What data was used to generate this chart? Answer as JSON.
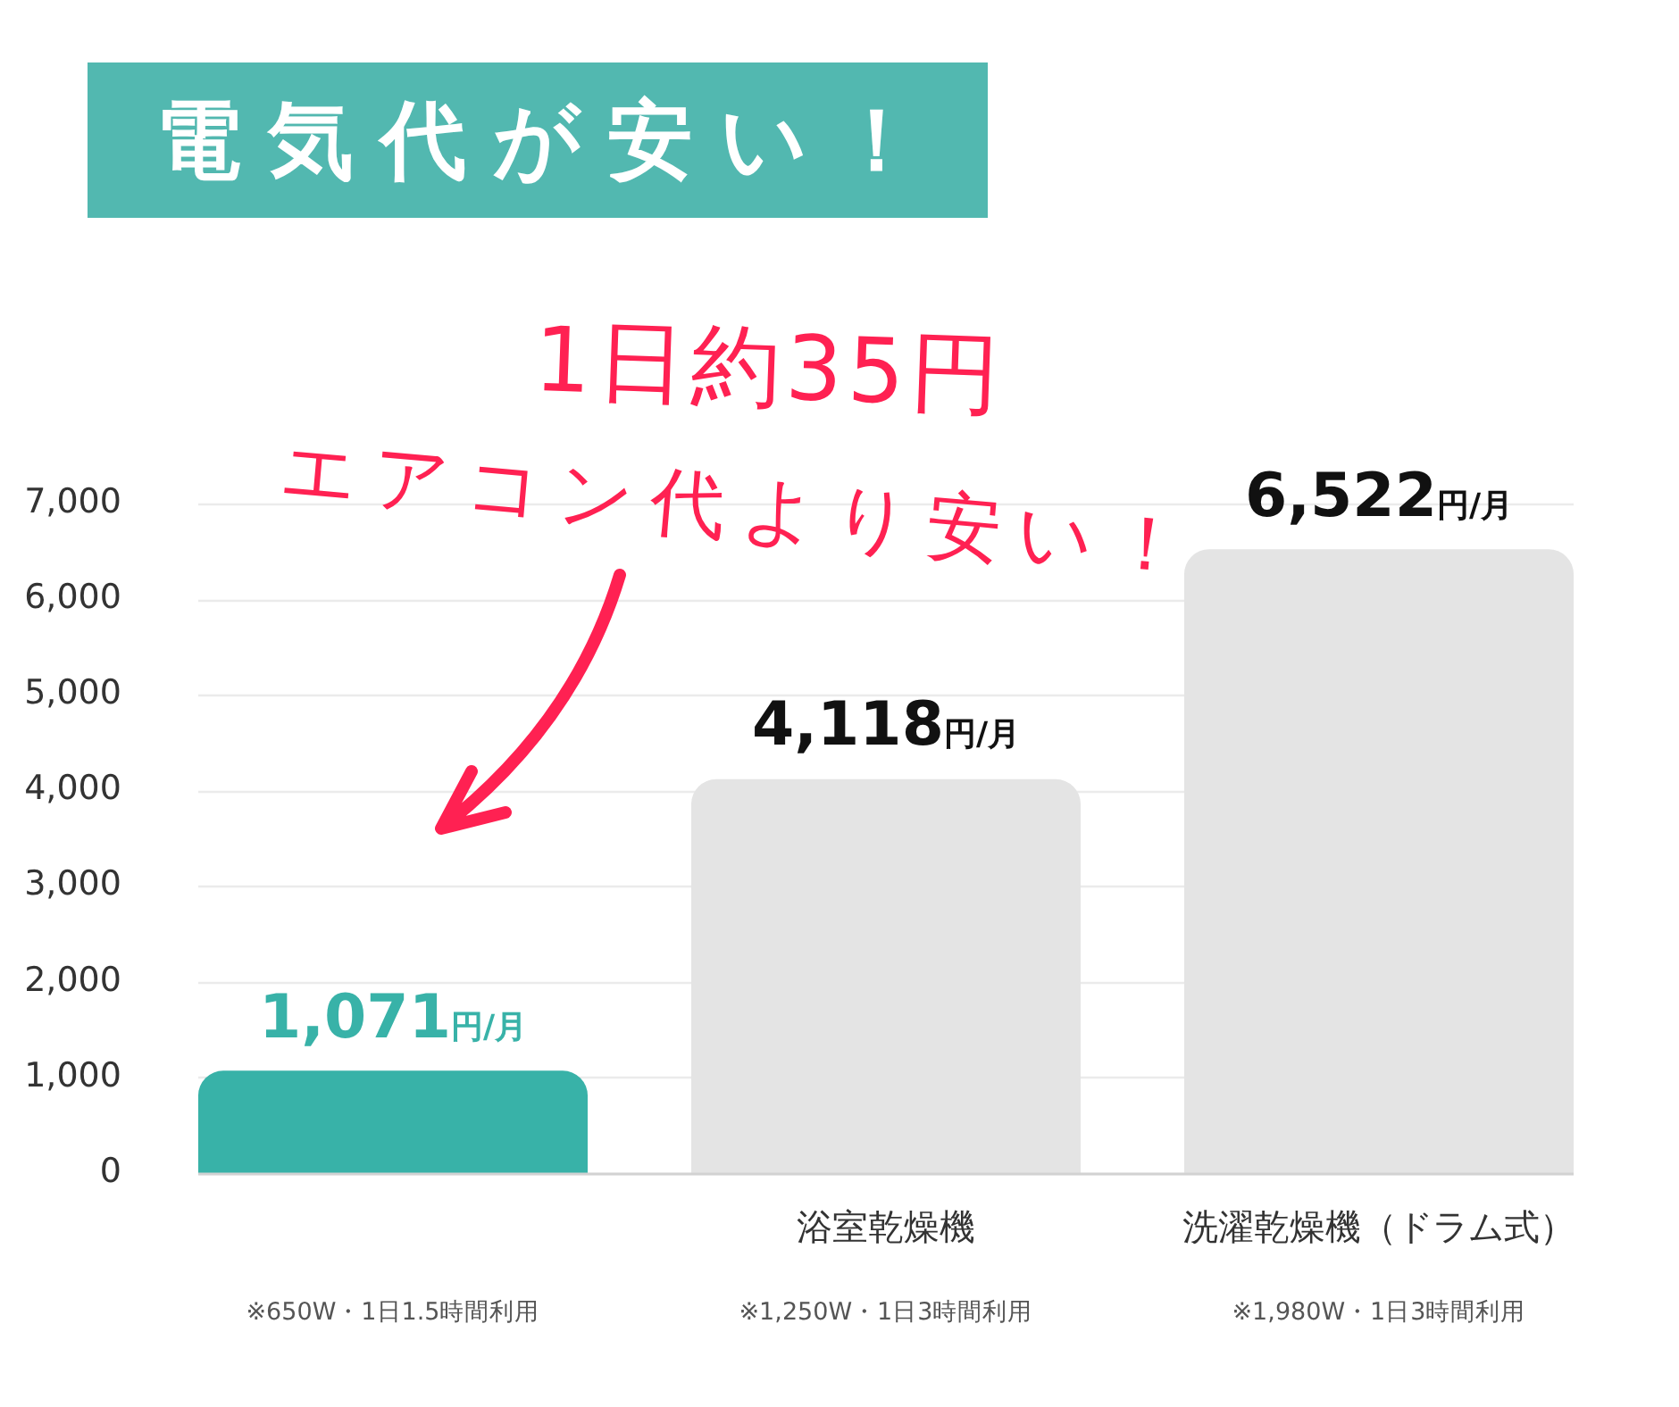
{
  "chart_data": {
    "type": "bar",
    "title": "電気代が安い！",
    "categories": [
      null,
      "浴室乾燥機",
      "洗濯乾燥機（ドラム式）"
    ],
    "values": [
      1071,
      4118,
      6522
    ],
    "colors": [
      "#38b2a8",
      "#e4e4e4",
      "#e4e4e4"
    ],
    "value_labels": [
      "1,071円/月",
      "4,118円/月",
      "6,522円/月"
    ],
    "ylim": [
      0,
      7000
    ],
    "yticks": [
      0,
      {
        "value": 1000,
        "label": "1,000"
      },
      {
        "value": 2000,
        "label": "2,000"
      },
      {
        "value": 3000,
        "label": "3,000"
      },
      {
        "value": 4000,
        "label": "4,000"
      },
      {
        "value": 5000,
        "label": "5,000"
      },
      {
        "value": 6000,
        "label": "6,000"
      },
      {
        "value": 7000,
        "label": "7,000"
      }
    ],
    "grid": "y",
    "legend": false,
    "annotations": [
      "1日約35円",
      "エアコン代より安い！",
      "※650W・1日1.5時間利用",
      "※1,250W・1日3時間利用",
      "※1,980W・1日3時間利用"
    ]
  }
}
